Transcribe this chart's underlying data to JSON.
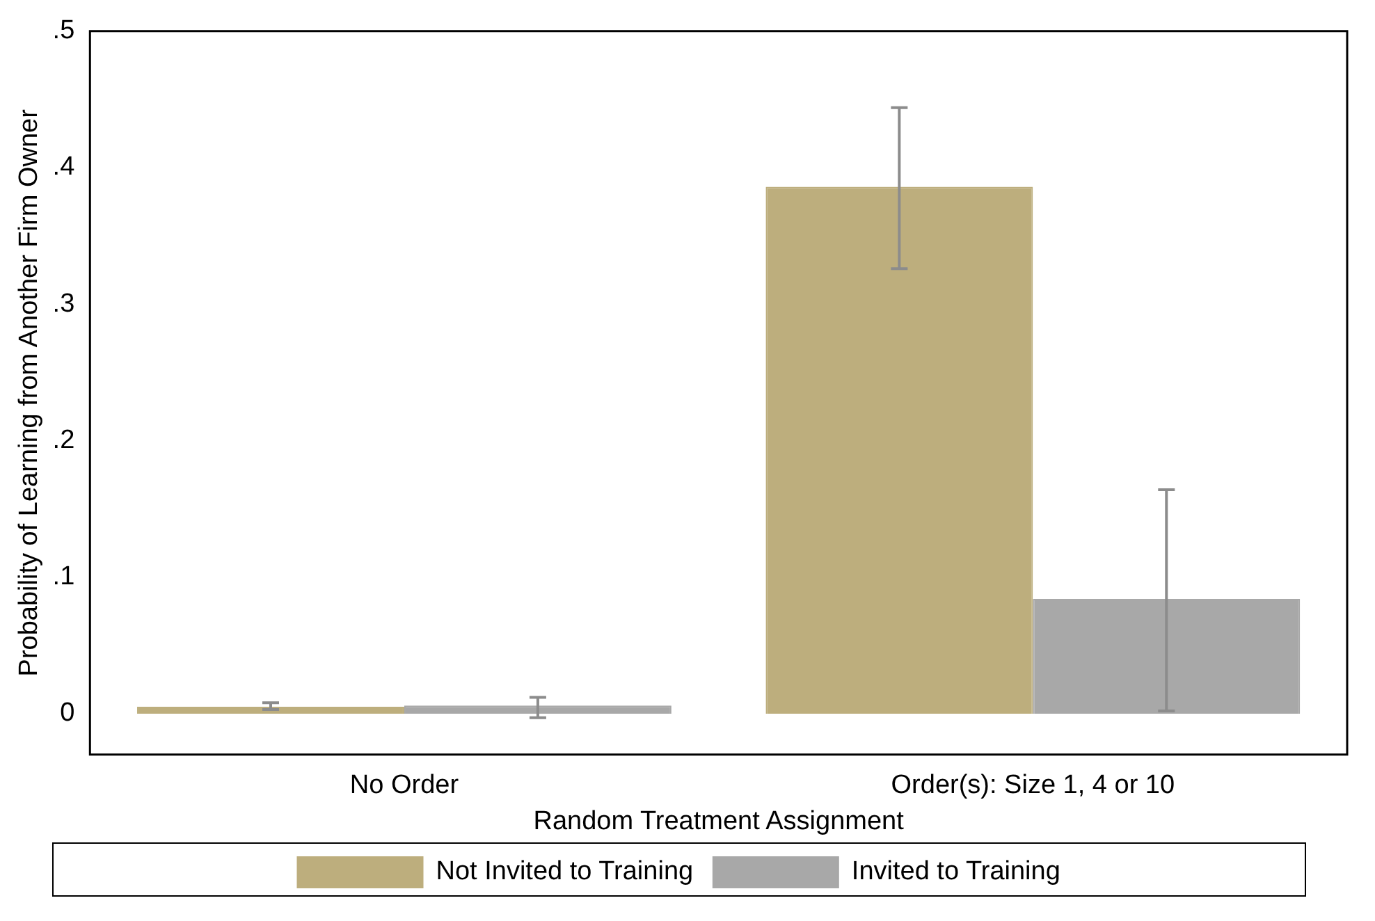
{
  "chart_data": {
    "type": "bar",
    "xlabel": "Random Treatment Assignment",
    "ylabel": "Probability of Learning from Another Firm Owner",
    "categories": [
      "No Order",
      "Order(s): Size 1, 4 or 10"
    ],
    "series": [
      {
        "name": "Not Invited to Training",
        "color": "#bdae7d",
        "values": [
          0.005,
          0.386
        ],
        "errors": [
          [
            0.003,
            0.008
          ],
          [
            0.326,
            0.444
          ]
        ]
      },
      {
        "name": "Invited to Training",
        "color": "#a8a8a8",
        "values": [
          0.006,
          0.084
        ],
        "errors": [
          [
            -0.003,
            0.012
          ],
          [
            0.002,
            0.164
          ]
        ]
      }
    ],
    "ylim": [
      -0.03,
      0.5
    ],
    "yticks": [
      0,
      {
        "value": 0.1,
        "label": ".1"
      },
      {
        "value": 0.2,
        "label": ".2"
      },
      {
        "value": 0.3,
        "label": ".3"
      },
      {
        "value": 0.4,
        "label": ".4"
      },
      {
        "value": 0.5,
        "label": ".5"
      }
    ],
    "grid": false,
    "legend": "bottom"
  }
}
